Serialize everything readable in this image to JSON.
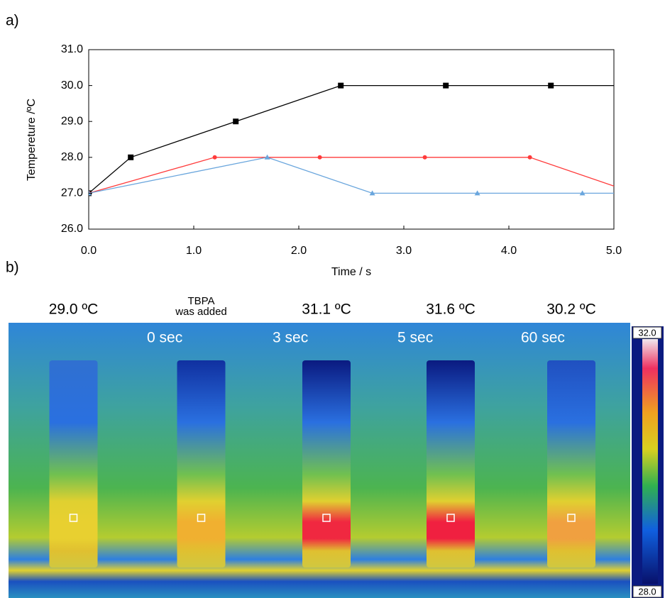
{
  "panel_labels": [
    "a)",
    "b)"
  ],
  "chart_data": {
    "type": "line",
    "xlabel": "Time / s",
    "ylabel": "Tempereture  /ºC",
    "xlim": [
      0,
      5
    ],
    "ylim": [
      26,
      31
    ],
    "xticks": [
      {
        "value": 0,
        "label": "0.0"
      },
      {
        "value": 1,
        "label": "1.0"
      },
      {
        "value": 2,
        "label": "2.0"
      },
      {
        "value": 3,
        "label": "3.0"
      },
      {
        "value": 4,
        "label": "4.0"
      },
      {
        "value": 5,
        "label": "5.0"
      }
    ],
    "yticks": [
      {
        "value": 26,
        "label": "26.0"
      },
      {
        "value": 27,
        "label": "27.0"
      },
      {
        "value": 28,
        "label": "28.0"
      },
      {
        "value": 29,
        "label": "29.0"
      },
      {
        "value": 30,
        "label": "30.0"
      },
      {
        "value": 31,
        "label": "31.0"
      }
    ],
    "series": [
      {
        "color": "#000000",
        "marker": "square",
        "x": [
          0,
          0.4,
          1.4,
          2.4,
          3.4,
          4.4,
          5.4
        ],
        "values": [
          27,
          28,
          29,
          30,
          30,
          30,
          30
        ]
      },
      {
        "color": "#ff3b3b",
        "marker": "circle",
        "x": [
          0,
          1.2,
          2.2,
          3.2,
          4.2,
          5.2
        ],
        "values": [
          27,
          28,
          28,
          28,
          28,
          27
        ]
      },
      {
        "color": "#6aa6dd",
        "marker": "triangle",
        "x": [
          0,
          1.7,
          2.7,
          3.7,
          4.7,
          5.7
        ],
        "values": [
          27,
          28,
          27,
          27,
          27,
          27
        ]
      }
    ]
  },
  "thermal": {
    "images": [
      {
        "temperature": "29.0 ºC"
      },
      {
        "caption": [
          "TBPA",
          "was added"
        ],
        "time": "0 sec"
      },
      {
        "temperature": "31.1 ºC",
        "time": "3 sec"
      },
      {
        "temperature": "31.6 ºC",
        "time": "5 sec"
      },
      {
        "temperature": "30.2 ºC",
        "time": "60 sec"
      }
    ],
    "scale_max": "32.0",
    "scale_min": "28.0"
  }
}
